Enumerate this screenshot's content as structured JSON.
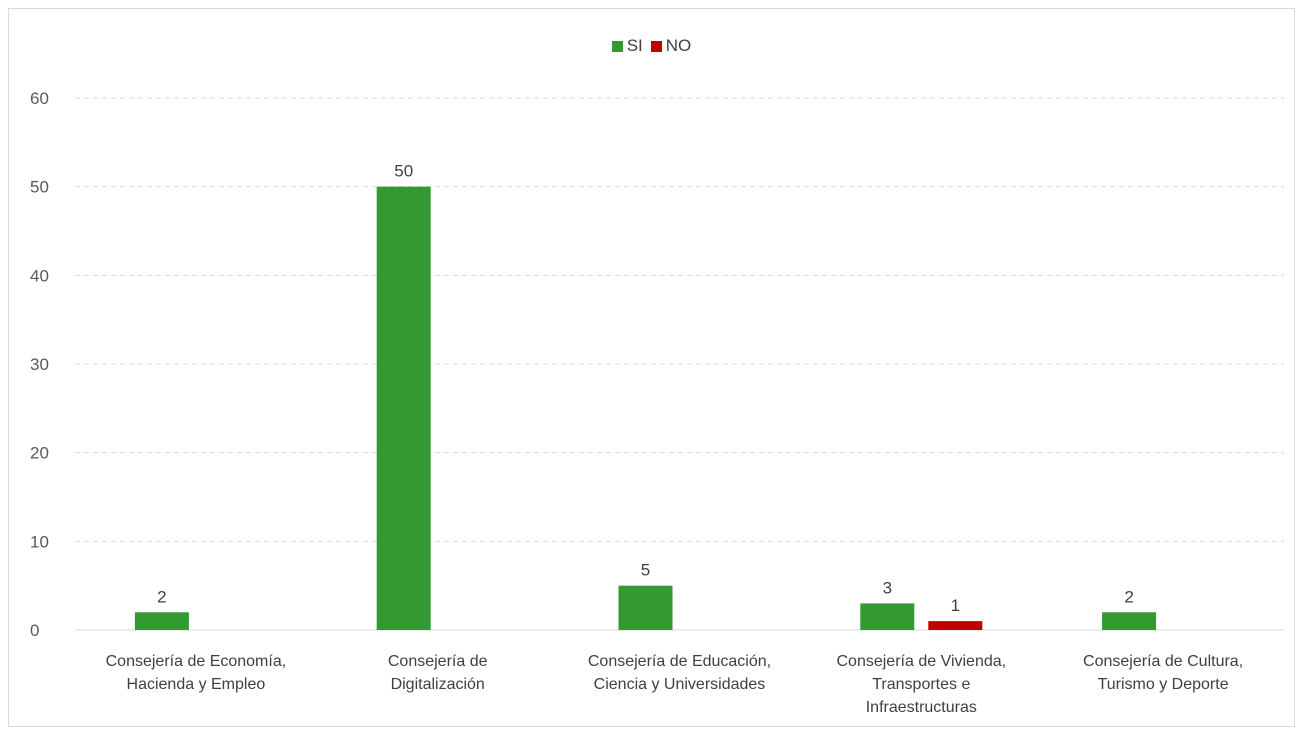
{
  "chart_data": {
    "type": "bar",
    "categories": [
      [
        "Consejería de Economía,",
        "Hacienda y Empleo"
      ],
      [
        "Consejería de",
        "Digitalización"
      ],
      [
        "Consejería de Educación,",
        "Ciencia y Universidades"
      ],
      [
        "Consejería de Vivienda,",
        "Transportes e",
        "Infraestructuras"
      ],
      [
        "Consejería de Cultura,",
        "Turismo y Deporte"
      ]
    ],
    "series": [
      {
        "name": "SI",
        "color": "#339933",
        "values": [
          2,
          50,
          5,
          3,
          2
        ]
      },
      {
        "name": "NO",
        "color": "#c00000",
        "values": [
          0,
          0,
          0,
          1,
          0
        ]
      }
    ],
    "data_labels": {
      "SI": [
        "2",
        "50",
        "5",
        "3",
        "2"
      ],
      "NO": [
        null,
        null,
        null,
        "1",
        null
      ]
    },
    "ylim": [
      0,
      60
    ],
    "yticks": [
      "0",
      "10",
      "20",
      "30",
      "40",
      "50",
      "60"
    ],
    "grid": true,
    "legend_position": "top-center",
    "title": "",
    "xlabel": "",
    "ylabel": ""
  }
}
